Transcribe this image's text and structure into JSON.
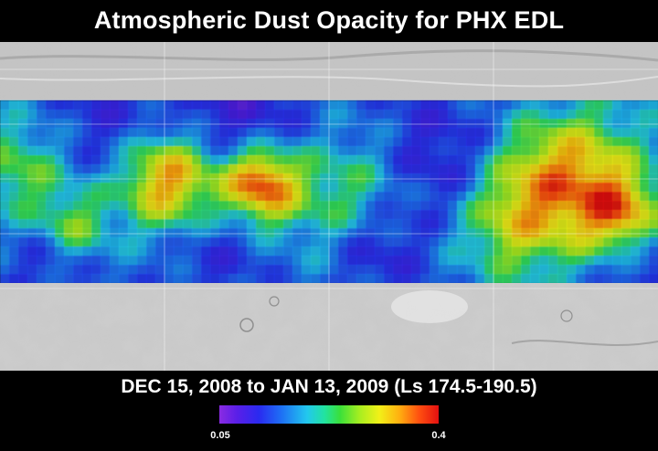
{
  "title": "Atmospheric Dust Opacity for PHX EDL",
  "subtitle": "DEC 15, 2008 to JAN 13, 2009 (Ls 174.5-190.5)",
  "colorbar": {
    "min_label": "0.05",
    "max_label": "0.4",
    "min_value": 0.05,
    "max_value": 0.4,
    "colors": [
      "#8a2be2",
      "#2a2af0",
      "#1e6ef5",
      "#22c8ee",
      "#3ae03a",
      "#f2f018",
      "#ff5010",
      "#e41010"
    ]
  },
  "map": {
    "basemap": "shaded-relief-terrain",
    "overlay": "dust-opacity-grid"
  }
}
